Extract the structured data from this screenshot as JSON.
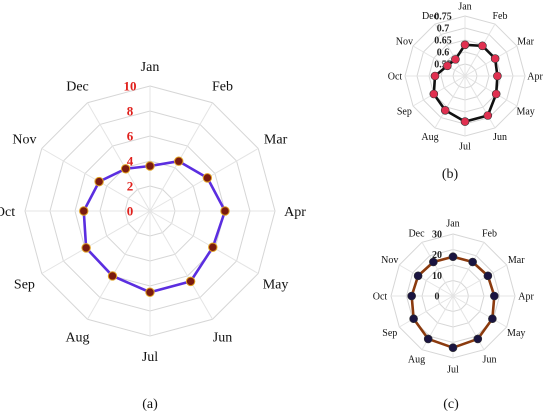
{
  "chart_data": [
    {
      "panel_label": "(a)",
      "type": "radar",
      "categories": [
        "Jan",
        "Feb",
        "Mar",
        "Apr",
        "May",
        "Jun",
        "Jul",
        "Aug",
        "Sep",
        "Oct",
        "Nov",
        "Dec"
      ],
      "radial_ticks": [
        "0",
        "2",
        "4",
        "6",
        "8",
        "10"
      ],
      "rlim": [
        0,
        10
      ],
      "values": [
        3.6,
        4.6,
        5.3,
        6.0,
        5.8,
        6.5,
        6.5,
        6.0,
        5.9,
        5.3,
        4.7,
        3.9
      ],
      "line_color": "#5b2ee0",
      "marker_color": "#7a1a10",
      "tick_color": "#e0201c",
      "grid": true
    },
    {
      "panel_label": "(b)",
      "type": "radar",
      "categories": [
        "Jan",
        "Feb",
        "Mar",
        "Apr",
        "May",
        "Jun",
        "Jul",
        "Aug",
        "Sep",
        "Oct",
        "Nov",
        "Dec"
      ],
      "radial_ticks": [
        "0.55",
        "0.6",
        "0.65",
        "0.7",
        "0.75"
      ],
      "rlim": [
        0.5,
        0.75
      ],
      "values": [
        0.63,
        0.645,
        0.645,
        0.635,
        0.65,
        0.69,
        0.69,
        0.665,
        0.65,
        0.625,
        0.585,
        0.58
      ],
      "line_color": "#111111",
      "marker_color": "#e03050",
      "tick_color": "#222222",
      "grid": true
    },
    {
      "panel_label": "(c)",
      "type": "radar",
      "categories": [
        "Jan",
        "Feb",
        "Mar",
        "Apr",
        "May",
        "Jun",
        "Jul",
        "Aug",
        "Sep",
        "Oct",
        "Nov",
        "Dec"
      ],
      "radial_ticks": [
        "0",
        "10",
        "20",
        "30"
      ],
      "rlim": [
        0,
        30
      ],
      "values": [
        19,
        19,
        19.5,
        20,
        22,
        24,
        25,
        24,
        22,
        20,
        19.5,
        19
      ],
      "line_color": "#8b3a0e",
      "marker_color": "#1a1440",
      "tick_color": "#222222",
      "grid": true
    }
  ]
}
